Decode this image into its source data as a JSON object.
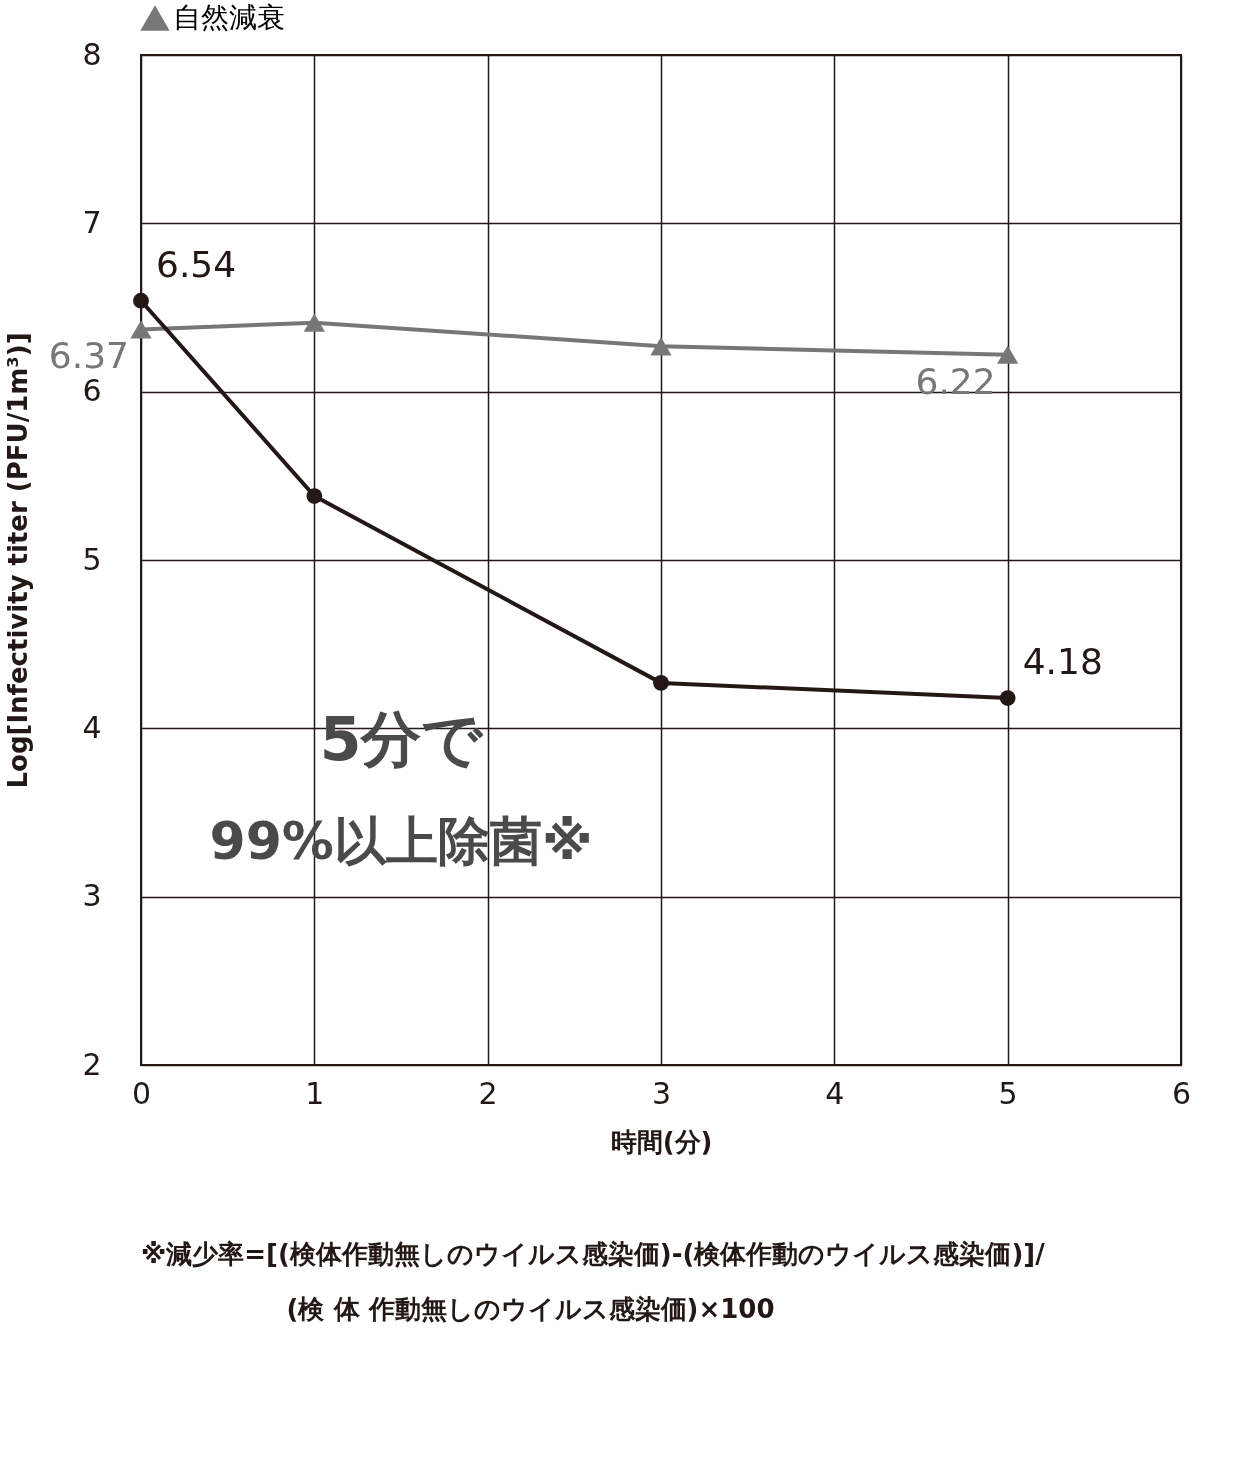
{
  "chart_data": {
    "type": "line",
    "xlabel": "時間(分)",
    "ylabel": "Log[Infectivity titer (PFU/1m³)]",
    "x": [
      0,
      1,
      3,
      5
    ],
    "xlim": [
      0,
      6
    ],
    "xticks": [
      0,
      1,
      2,
      3,
      4,
      5,
      6
    ],
    "ylim": [
      2,
      8
    ],
    "yticks": [
      2,
      3,
      4,
      5,
      6,
      7,
      8
    ],
    "grid": true,
    "legend": "top",
    "series": [
      {
        "name": "自然減衰",
        "color": "#777777",
        "marker": "triangle",
        "values": [
          6.37,
          6.41,
          6.27,
          6.22
        ],
        "value_labels": [
          "6.37",
          null,
          null,
          "6.22"
        ]
      },
      {
        "color": "#231815",
        "marker": "circle",
        "values": [
          6.54,
          5.38,
          4.27,
          4.18
        ],
        "value_labels": [
          "6.54",
          null,
          null,
          "4.18"
        ]
      }
    ],
    "annotations": [
      "5分で",
      "99%以上除菌※",
      "※減少率=[(検体作動無しのウイルス感染価)-(検体作動のウイルス感染価)]/",
      "(検 体 作動無しのウイルス感染価)×100"
    ]
  }
}
